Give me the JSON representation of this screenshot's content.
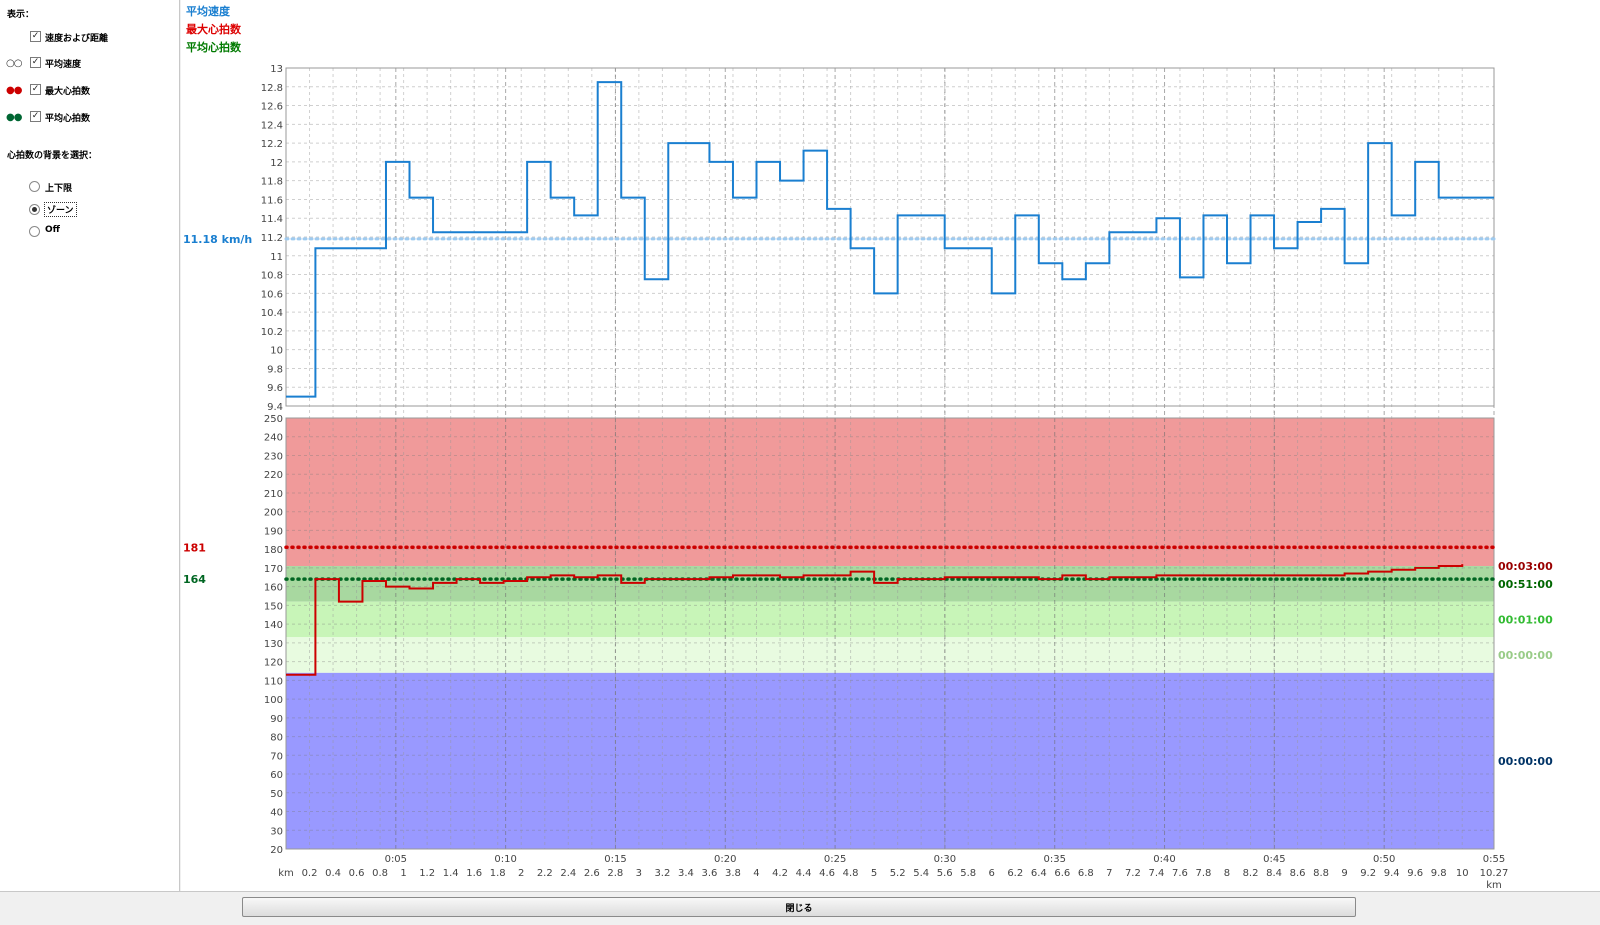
{
  "sidebar": {
    "display_label": "表示：",
    "options": [
      {
        "label": "速度および距離",
        "checked": true,
        "indicator": ""
      },
      {
        "label": "平均速度",
        "checked": true,
        "indicator": "open-circles",
        "color": "#333333"
      },
      {
        "label": "最大心拍数",
        "checked": true,
        "indicator": "red-dots",
        "color": "#cc0000"
      },
      {
        "label": "平均心拍数",
        "checked": true,
        "indicator": "green-dots",
        "color": "#006633"
      }
    ],
    "background_label": "心拍数の背景を選択：",
    "background_options": [
      {
        "label": "上下限",
        "selected": false
      },
      {
        "label": "ゾーン",
        "selected": true
      },
      {
        "label": "Off",
        "selected": false
      }
    ]
  },
  "legend": [
    {
      "label": "平均速度",
      "color": "#1a7fd0"
    },
    {
      "label": "最大心拍数",
      "color": "#dd0000"
    },
    {
      "label": "平均心拍数",
      "color": "#007a00"
    }
  ],
  "footer": {
    "close_label": "閉じる"
  },
  "colors": {
    "speed": "#1a7fd0",
    "avg_speed": "#9fcbf0",
    "hr": "#cc0000",
    "max_hr": "#ee0000",
    "avg_hr": "#006622"
  },
  "chart_data": [
    {
      "type": "line",
      "step": true,
      "title": "",
      "xlabel": "km",
      "ylabel": "",
      "ylim": [
        9.4,
        13
      ],
      "yticks": [
        "9.4",
        "9.6",
        "9.8",
        "10",
        "10.2",
        "10.4",
        "10.6",
        "10.8",
        "11",
        "11.2",
        "11.4",
        "11.6",
        "11.8",
        "12",
        "12.2",
        "12.4",
        "12.6",
        "12.8",
        "13"
      ],
      "xlim": [
        0,
        10.27
      ],
      "distance_ticks": [
        "0.2",
        "0.4",
        "0.6",
        "0.8",
        "1",
        "1.2",
        "1.4",
        "1.6",
        "1.8",
        "2",
        "2.2",
        "2.4",
        "2.6",
        "2.8",
        "3",
        "3.2",
        "3.4",
        "3.6",
        "3.8",
        "4",
        "4.2",
        "4.4",
        "4.6",
        "4.8",
        "5",
        "5.2",
        "5.4",
        "5.6",
        "5.8",
        "6",
        "6.2",
        "6.4",
        "6.6",
        "6.8",
        "7",
        "7.2",
        "7.4",
        "7.6",
        "7.8",
        "8",
        "8.2",
        "8.4",
        "8.6",
        "8.8",
        "9",
        "9.2",
        "9.4",
        "9.6",
        "9.8",
        "10"
      ],
      "distance_end_label": "10.27",
      "x_unit_label": "km",
      "time_ticks": [
        "0:05",
        "0:10",
        "0:15",
        "0:20",
        "0:25",
        "0:30",
        "0:35",
        "0:40",
        "0:45",
        "0:50",
        "0:55"
      ],
      "grid": true,
      "series": [
        {
          "name": "平均速度",
          "x": [
            0,
            0.25,
            0.85,
            1.05,
            1.25,
            2.05,
            2.25,
            2.45,
            2.65,
            2.85,
            3.05,
            3.25,
            3.6,
            3.8,
            4.0,
            4.2,
            4.4,
            4.6,
            4.8,
            5.0,
            5.2,
            5.6,
            6.0,
            6.2,
            6.4,
            6.6,
            6.8,
            7.0,
            7.4,
            7.6,
            7.8,
            8.0,
            8.2,
            8.4,
            8.6,
            8.8,
            9.0,
            9.2,
            9.4,
            9.6,
            9.8,
            10.27
          ],
          "values": [
            9.5,
            11.08,
            12.0,
            11.62,
            11.25,
            12.0,
            11.62,
            11.43,
            12.85,
            11.62,
            10.75,
            12.2,
            12.0,
            11.62,
            12.0,
            11.8,
            12.12,
            11.5,
            11.08,
            10.6,
            11.43,
            11.08,
            10.6,
            11.43,
            10.92,
            10.75,
            10.92,
            11.25,
            11.4,
            10.77,
            11.43,
            10.92,
            11.43,
            11.08,
            11.36,
            11.5,
            10.92,
            12.2,
            11.43,
            12.0,
            11.62,
            11.62
          ]
        }
      ],
      "reference_lines": [
        {
          "value": 11.18,
          "label": "11.18 km/h"
        }
      ]
    },
    {
      "type": "line",
      "step": true,
      "title": "",
      "ylim": [
        20,
        250
      ],
      "yticks": [
        "20",
        "30",
        "40",
        "50",
        "60",
        "70",
        "80",
        "90",
        "100",
        "110",
        "120",
        "130",
        "140",
        "150",
        "160",
        "170",
        "180",
        "190",
        "200",
        "210",
        "220",
        "230",
        "240",
        "250"
      ],
      "xlim": [
        0,
        10.27
      ],
      "series": [
        {
          "name": "最大心拍数",
          "x": [
            0,
            0.25,
            0.45,
            0.65,
            0.85,
            1.05,
            1.25,
            1.45,
            1.65,
            1.85,
            2.05,
            2.25,
            2.45,
            2.65,
            2.85,
            3.05,
            3.25,
            3.6,
            3.8,
            4.0,
            4.2,
            4.4,
            4.6,
            4.8,
            5.0,
            5.2,
            5.6,
            6.0,
            6.2,
            6.4,
            6.6,
            6.8,
            7.0,
            7.4,
            7.6,
            7.8,
            8.0,
            8.2,
            8.4,
            8.6,
            8.8,
            9.0,
            9.2,
            9.4,
            9.6,
            9.8,
            10.0
          ],
          "values": [
            113,
            164,
            152,
            163,
            160,
            159,
            162,
            164,
            162,
            163,
            165,
            166,
            165,
            166,
            162,
            164,
            164,
            165,
            166,
            166,
            165,
            166,
            166,
            168,
            162,
            164,
            165,
            165,
            165,
            164,
            166,
            164,
            165,
            166,
            166,
            166,
            166,
            166,
            166,
            166,
            166,
            167,
            168,
            169,
            170,
            171,
            172
          ]
        }
      ],
      "zones": [
        {
          "from": 171,
          "to": 250,
          "color": "#f09a9a",
          "time": "00:03:00",
          "time_color": "#990000"
        },
        {
          "from": 152,
          "to": 171,
          "color": "#a8d8a0",
          "time": "00:51:00",
          "time_color": "#006600"
        },
        {
          "from": 133,
          "to": 152,
          "color": "#c8f5b8",
          "time": "00:01:00",
          "time_color": "#33bb33"
        },
        {
          "from": 114,
          "to": 133,
          "color": "#e8fbe0",
          "time": "00:00:00",
          "time_color": "#99cc88"
        },
        {
          "from": 20,
          "to": 114,
          "color": "#9999ff",
          "time": "00:00:00",
          "time_color": "#003366"
        }
      ],
      "reference_lines": [
        {
          "value": 181,
          "label": "181",
          "color": "#cc0000"
        },
        {
          "value": 164,
          "label": "164",
          "color": "#006622"
        }
      ]
    }
  ]
}
